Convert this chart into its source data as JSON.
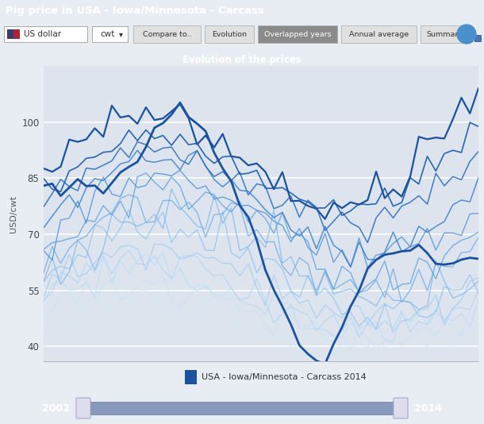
{
  "title_bar": "Pig price in USA - Iowa/Minnesota - Carcass",
  "chart_title": "Evolution of the prices",
  "ylabel": "USD/cwt",
  "yticks": [
    40,
    55,
    70,
    85,
    100
  ],
  "ylim": [
    36,
    115
  ],
  "n_points": 52,
  "legend_label": "USA - Iowa/Minnesota - Carcass 2014",
  "slider_left": "2002",
  "slider_right": "2014",
  "outer_bg": "#e8edf4",
  "chart_bg": "#dde4ee",
  "title_bar_color": "#4a72b0",
  "chart_title_bar_color": "#5b8ec4",
  "nav_bg": "#dce3ed",
  "slider_bg": "#4a72b0",
  "line_configs": [
    {
      "base": 80,
      "amp": 18,
      "phase": 0.3,
      "noise": 2.5,
      "trend": 22,
      "color": "#1a52a0",
      "lw": 1.6,
      "alpha": 1.0
    },
    {
      "base": 78,
      "amp": 14,
      "phase": 0.2,
      "noise": 2.0,
      "trend": 18,
      "color": "#2060b0",
      "lw": 1.2,
      "alpha": 0.95
    },
    {
      "base": 76,
      "amp": 13,
      "phase": 0.1,
      "noise": 2.0,
      "trend": 14,
      "color": "#2e70c0",
      "lw": 1.1,
      "alpha": 0.9
    },
    {
      "base": 73,
      "amp": 15,
      "phase": 0.0,
      "noise": 2.5,
      "trend": 10,
      "color": "#3a80cc",
      "lw": 1.1,
      "alpha": 0.85
    },
    {
      "base": 70,
      "amp": 13,
      "phase": -0.1,
      "noise": 2.5,
      "trend": 8,
      "color": "#4a90d9",
      "lw": 1.0,
      "alpha": 0.8
    },
    {
      "base": 67,
      "amp": 14,
      "phase": -0.2,
      "noise": 3.0,
      "trend": 6,
      "color": "#5a9fe0",
      "lw": 1.0,
      "alpha": 0.78
    },
    {
      "base": 65,
      "amp": 12,
      "phase": -0.1,
      "noise": 3.0,
      "trend": 4,
      "color": "#6aaae5",
      "lw": 1.0,
      "alpha": 0.75
    },
    {
      "base": 62,
      "amp": 13,
      "phase": -0.3,
      "noise": 3.0,
      "trend": 2,
      "color": "#7ab5ea",
      "lw": 1.0,
      "alpha": 0.7
    },
    {
      "base": 60,
      "amp": 12,
      "phase": -0.2,
      "noise": 3.0,
      "trend": 0,
      "color": "#8ac0ee",
      "lw": 1.0,
      "alpha": 0.68
    },
    {
      "base": 57,
      "amp": 10,
      "phase": -0.1,
      "noise": 2.5,
      "trend": 0,
      "color": "#9acbf2",
      "lw": 1.0,
      "alpha": 0.65
    },
    {
      "base": 54,
      "amp": 9,
      "phase": 0.0,
      "noise": 2.5,
      "trend": 0,
      "color": "#aad4f5",
      "lw": 1.0,
      "alpha": 0.62
    },
    {
      "base": 52,
      "amp": 8,
      "phase": 0.1,
      "noise": 2.5,
      "trend": 0,
      "color": "#b8dcf7",
      "lw": 1.0,
      "alpha": 0.6
    },
    {
      "base": 49,
      "amp": 8,
      "phase": 0.0,
      "noise": 2.5,
      "trend": 0,
      "color": "#c5e3f8",
      "lw": 0.9,
      "alpha": 0.57
    },
    {
      "base": 46,
      "amp": 7,
      "phase": 0.1,
      "noise": 2.5,
      "trend": 0,
      "color": "#cce6f9",
      "lw": 0.9,
      "alpha": 0.55
    },
    {
      "base": 43,
      "amp": 7,
      "phase": 0.0,
      "noise": 2.5,
      "trend": 0,
      "color": "#d5eafa",
      "lw": 0.9,
      "alpha": 0.52
    }
  ],
  "highlight_2014": [
    82,
    82,
    81,
    82,
    83,
    84,
    83,
    82,
    84,
    86,
    88,
    90,
    93,
    97,
    100,
    103,
    105,
    103,
    100,
    97,
    93,
    88,
    83,
    78,
    73,
    68,
    62,
    56,
    50,
    45,
    40,
    37,
    36,
    37,
    40,
    45,
    50,
    55,
    60,
    63,
    65,
    65,
    65,
    65,
    65,
    64,
    63,
    62,
    62,
    63,
    64,
    65
  ],
  "highlight_color": "#1a52a0",
  "highlight_lw": 2.0
}
